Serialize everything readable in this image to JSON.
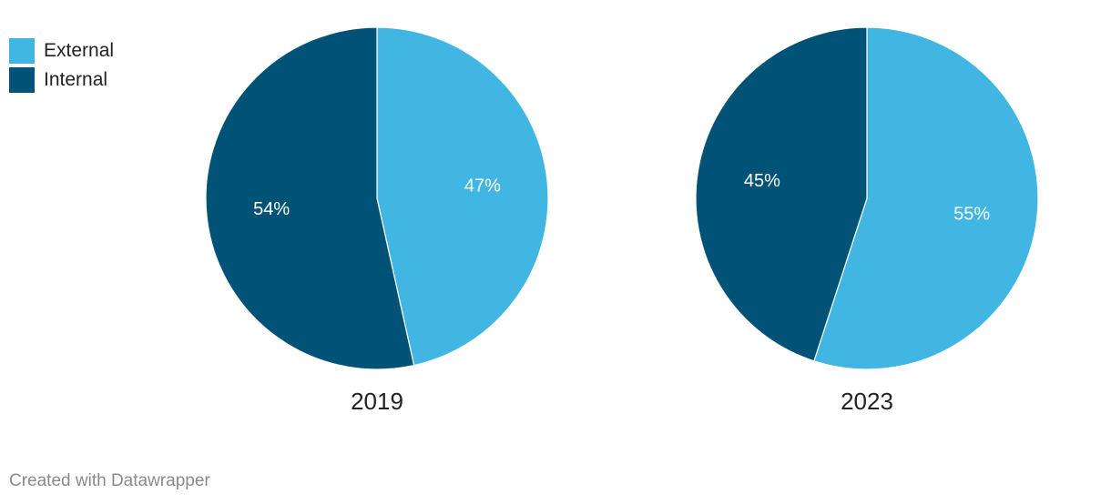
{
  "chart_data": {
    "type": "pie",
    "series_labels": [
      "External",
      "Internal"
    ],
    "colors": {
      "External": "#42b6e3",
      "Internal": "#005377"
    },
    "pies": [
      {
        "title": "2019",
        "values": {
          "External": 47,
          "Internal": 54
        },
        "labels": {
          "External": "47%",
          "Internal": "54%"
        }
      },
      {
        "title": "2023",
        "values": {
          "External": 55,
          "Internal": 45
        },
        "labels": {
          "External": "55%",
          "Internal": "45%"
        }
      }
    ]
  },
  "legend": {
    "items": [
      {
        "label": "External",
        "color": "#42b6e3"
      },
      {
        "label": "Internal",
        "color": "#005377"
      }
    ]
  },
  "footer": {
    "credit": "Created with Datawrapper"
  }
}
